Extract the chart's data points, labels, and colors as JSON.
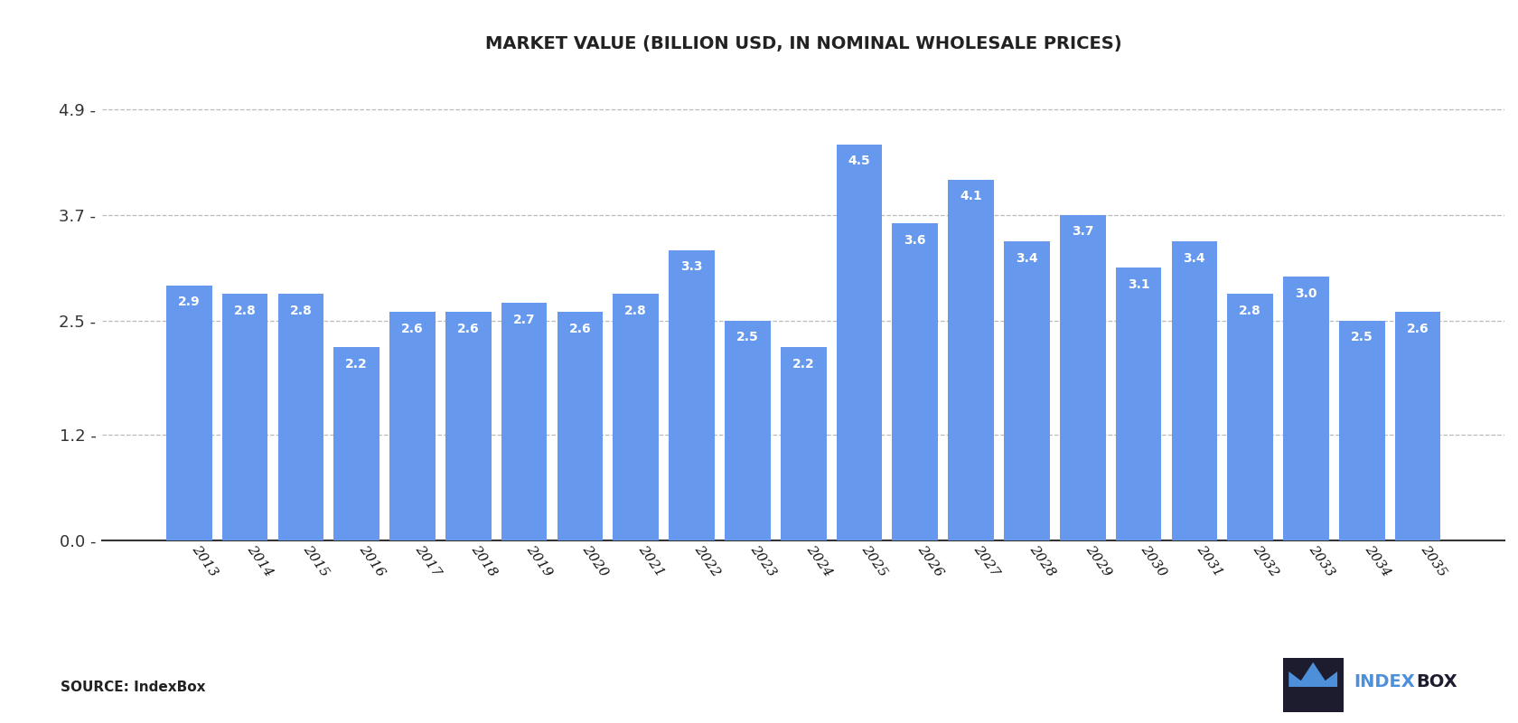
{
  "title": "MARKET VALUE (BILLION USD, IN NOMINAL WHOLESALE PRICES)",
  "years": [
    2013,
    2014,
    2015,
    2016,
    2017,
    2018,
    2019,
    2020,
    2021,
    2022,
    2023,
    2024,
    2025,
    2026,
    2027,
    2028,
    2029,
    2030,
    2031,
    2032,
    2033,
    2034,
    2035
  ],
  "values": [
    2.9,
    2.8,
    2.8,
    2.2,
    2.6,
    2.6,
    2.7,
    2.6,
    2.8,
    3.3,
    2.5,
    2.2,
    4.5,
    3.6,
    4.1,
    3.4,
    3.7,
    3.1,
    3.4,
    2.8,
    3.0,
    2.5,
    2.6
  ],
  "bar_color": "#6699ee",
  "bar_edge_color": "none",
  "yticks": [
    0.0,
    1.2,
    2.5,
    3.7,
    4.9
  ],
  "ytick_labels": [
    "0.0",
    "1.2",
    "2.5",
    "3.7",
    "4.9"
  ],
  "ylim": [
    0,
    5.3
  ],
  "title_fontsize": 14,
  "label_fontsize": 10,
  "source_text": "SOURCE: IndexBox",
  "background_color": "#ffffff",
  "grid_color": "#bbbbbb",
  "label_color": "#ffffff",
  "label_outside_color": "#555555",
  "indexbox_blue": "#4d90d9",
  "indexbox_dark": "#1a1a2e"
}
